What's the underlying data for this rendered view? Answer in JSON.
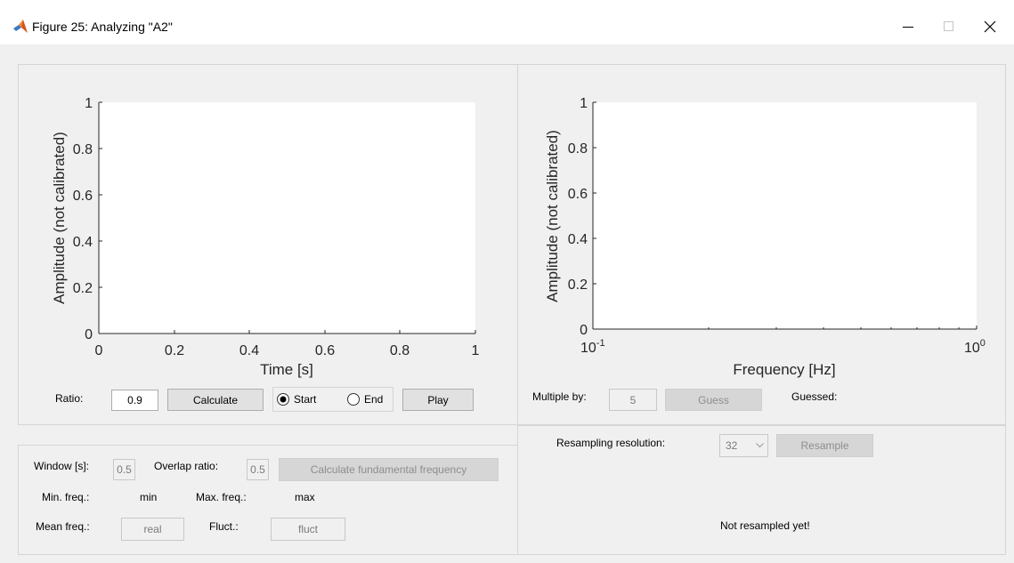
{
  "window": {
    "title": "Figure 25: Analyzing \"A2\"",
    "minimize_icon": "minimize-icon",
    "maximize_icon": "maximize-icon",
    "close_icon": "close-icon"
  },
  "time_axes": {
    "ylabel": "Amplitude (not calibrated)",
    "xlabel": "Time [s]",
    "yticks": [
      "0",
      "0.2",
      "0.4",
      "0.6",
      "0.8",
      "1"
    ],
    "xticks": [
      "0",
      "0.2",
      "0.4",
      "0.6",
      "0.8",
      "1"
    ]
  },
  "freq_axes": {
    "ylabel": "Amplitude (not calibrated)",
    "xlabel": "Frequency [Hz]",
    "yticks": [
      "0",
      "0.2",
      "0.4",
      "0.6",
      "0.8",
      "1"
    ],
    "xtick_left_base": "10",
    "xtick_left_exp": "-1",
    "xtick_right_base": "10",
    "xtick_right_exp": "0"
  },
  "ratio_row": {
    "ratio_label": "Ratio:",
    "ratio_value": "0.9",
    "calculate_label": "Calculate",
    "start_label": "Start",
    "end_label": "End",
    "selected": "Start",
    "play_label": "Play"
  },
  "multiple_row": {
    "multiple_label": "Multiple by:",
    "multiple_value": "5",
    "guess_label": "Guess",
    "guessed_label": "Guessed:"
  },
  "fundamental": {
    "window_label": "Window [s]:",
    "window_value": "0.5",
    "overlap_label": "Overlap ratio:",
    "overlap_value": "0.5",
    "calc_fund_label": "Calculate fundamental frequency",
    "min_label": "Min. freq.:",
    "min_value": "min",
    "max_label": "Max. freq.:",
    "max_value": "max",
    "mean_label": "Mean freq.:",
    "mean_value": "real",
    "fluct_label": "Fluct.:",
    "fluct_value": "fluct"
  },
  "resample": {
    "resolution_label": "Resampling resolution:",
    "resolution_value": "32",
    "resample_label": "Resample",
    "status": "Not resampled yet!"
  }
}
